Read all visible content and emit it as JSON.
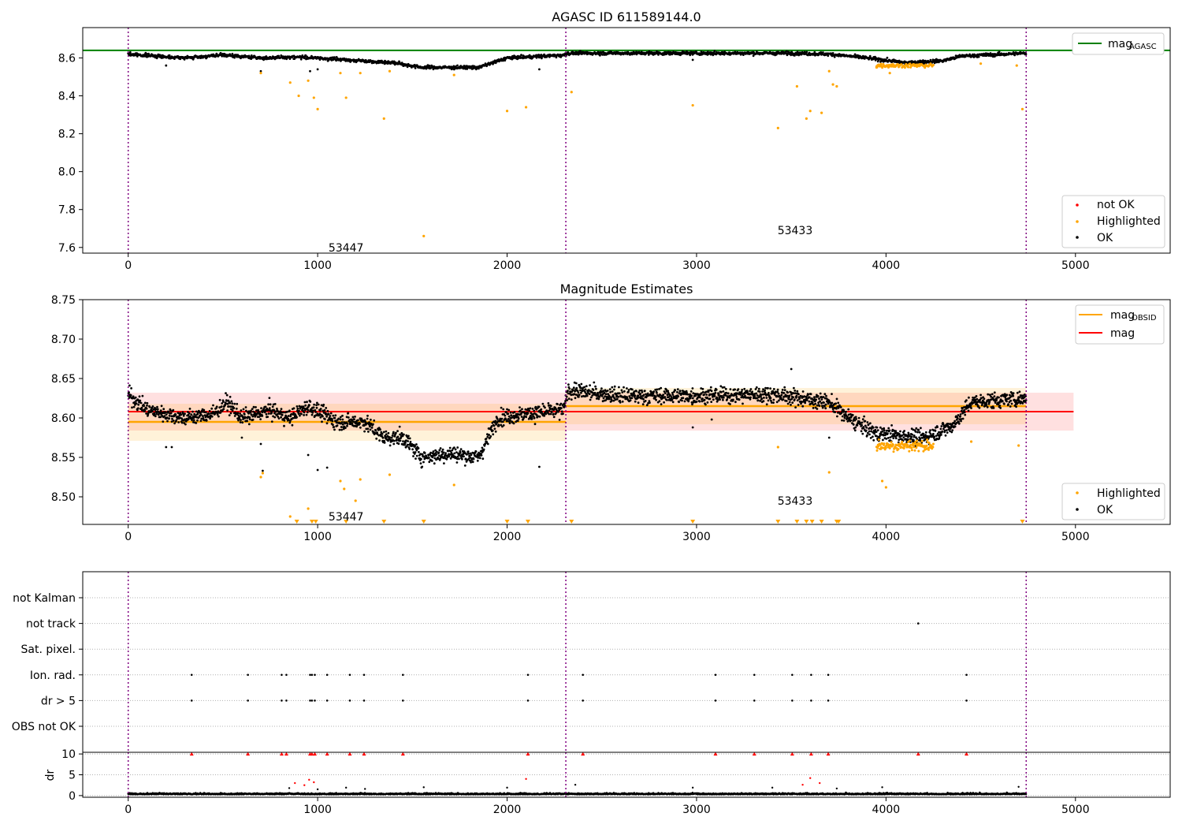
{
  "chart_data": [
    {
      "panel": "top",
      "type": "scatter",
      "title": "AGASC ID 611589144.0",
      "xlim": [
        -240,
        5500
      ],
      "ylim": [
        7.57,
        8.76
      ],
      "xticks": [
        0,
        1000,
        2000,
        3000,
        4000,
        5000
      ],
      "xtick_labels": [
        "0",
        "1000",
        "2000",
        "3000",
        "4000",
        "5000"
      ],
      "yticks": [
        7.6,
        7.8,
        8.0,
        8.2,
        8.4,
        8.6
      ],
      "ytick_labels": [
        "7.6",
        "7.8",
        "8.0",
        "8.2",
        "8.4",
        "8.6"
      ],
      "obsid_boundaries": [
        0,
        2310,
        4740
      ],
      "obsid_labels": [
        {
          "text": "53447",
          "x": 1150,
          "y": 7.6
        },
        {
          "text": "53433",
          "x": 3520,
          "y": 7.69
        }
      ],
      "hlines": [
        {
          "name": "mag",
          "subscript": "AGASC",
          "y": 8.64,
          "xmin": -240,
          "xmax": 5500,
          "color": "#008000"
        }
      ],
      "line_legend": {
        "label": "mag",
        "subscript": "AGASC",
        "placement": "top-right"
      },
      "scatter_legend": {
        "entries": [
          "not OK",
          "Highlighted",
          "OK"
        ],
        "placement": "bottom-right"
      },
      "ok_trend": [
        [
          0,
          8.62
        ],
        [
          300,
          8.6
        ],
        [
          500,
          8.615
        ],
        [
          700,
          8.6
        ],
        [
          900,
          8.605
        ],
        [
          1150,
          8.59
        ],
        [
          1400,
          8.575
        ],
        [
          1550,
          8.55
        ],
        [
          1850,
          8.55
        ],
        [
          2000,
          8.6
        ],
        [
          2300,
          8.615
        ],
        [
          2320,
          8.625
        ],
        [
          3000,
          8.625
        ],
        [
          3500,
          8.625
        ],
        [
          3700,
          8.62
        ],
        [
          3900,
          8.6
        ],
        [
          4100,
          8.575
        ],
        [
          4300,
          8.585
        ],
        [
          4400,
          8.61
        ],
        [
          4740,
          8.625
        ]
      ],
      "ok_spread": 0.008,
      "highlighted_points": [
        [
          700,
          8.52
        ],
        [
          855,
          8.47
        ],
        [
          900,
          8.4
        ],
        [
          950,
          8.48
        ],
        [
          980,
          8.39
        ],
        [
          1000,
          8.33
        ],
        [
          1120,
          8.52
        ],
        [
          1150,
          8.39
        ],
        [
          1225,
          8.52
        ],
        [
          1350,
          8.28
        ],
        [
          1380,
          8.53
        ],
        [
          1560,
          7.66
        ],
        [
          1720,
          8.51
        ],
        [
          2000,
          8.32
        ],
        [
          2100,
          8.34
        ],
        [
          2340,
          8.42
        ],
        [
          2980,
          8.35
        ],
        [
          3430,
          8.23
        ],
        [
          3530,
          8.45
        ],
        [
          3580,
          8.28
        ],
        [
          3600,
          8.32
        ],
        [
          3660,
          8.31
        ],
        [
          3700,
          8.53
        ],
        [
          3720,
          8.46
        ],
        [
          3740,
          8.45
        ],
        [
          3950,
          8.55
        ],
        [
          4020,
          8.52
        ],
        [
          4500,
          8.57
        ],
        [
          4690,
          8.56
        ],
        [
          4720,
          8.33
        ]
      ],
      "orange_cluster": {
        "xrange": [
          3950,
          4250
        ],
        "y": 8.56,
        "spread": 0.01
      }
    },
    {
      "panel": "middle",
      "type": "scatter",
      "title": "Magnitude Estimates",
      "xlim": [
        -240,
        5500
      ],
      "ylim": [
        8.465,
        8.75
      ],
      "xticks": [
        0,
        1000,
        2000,
        3000,
        4000,
        5000
      ],
      "xtick_labels": [
        "0",
        "1000",
        "2000",
        "3000",
        "4000",
        "5000"
      ],
      "yticks": [
        8.5,
        8.55,
        8.6,
        8.65,
        8.7,
        8.75
      ],
      "ytick_labels": [
        "8.50",
        "8.55",
        "8.60",
        "8.65",
        "8.70",
        "8.75"
      ],
      "obsid_boundaries": [
        0,
        2310,
        4740
      ],
      "obsid_labels": [
        {
          "text": "53447",
          "x": 1150,
          "y": 8.475
        },
        {
          "text": "53433",
          "x": 3520,
          "y": 8.495
        }
      ],
      "mag": {
        "value": 8.608,
        "band": [
          8.584,
          8.632
        ],
        "xrange": [
          0,
          4990
        ],
        "color": "#ff0000"
      },
      "mag_obsid": [
        {
          "xrange": [
            0,
            2310
          ],
          "value": 8.595,
          "band": [
            8.571,
            8.618
          ],
          "color": "#ffa500"
        },
        {
          "xrange": [
            2310,
            4740
          ],
          "value": 8.615,
          "band": [
            8.592,
            8.638
          ],
          "color": "#ffa500"
        }
      ],
      "line_legend": [
        {
          "label": "mag",
          "subscript": "OBSID",
          "color": "#ffa500"
        },
        {
          "label": "mag",
          "subscript": "",
          "color": "#ff0000"
        }
      ],
      "scatter_legend": {
        "entries": [
          "Highlighted",
          "OK"
        ],
        "placement": "bottom-right"
      },
      "ok_trend": [
        [
          0,
          8.63
        ],
        [
          100,
          8.61
        ],
        [
          200,
          8.605
        ],
        [
          300,
          8.6
        ],
        [
          450,
          8.605
        ],
        [
          520,
          8.62
        ],
        [
          600,
          8.6
        ],
        [
          750,
          8.61
        ],
        [
          850,
          8.6
        ],
        [
          950,
          8.615
        ],
        [
          1100,
          8.595
        ],
        [
          1250,
          8.595
        ],
        [
          1350,
          8.575
        ],
        [
          1450,
          8.575
        ],
        [
          1550,
          8.55
        ],
        [
          1700,
          8.555
        ],
        [
          1850,
          8.55
        ],
        [
          1950,
          8.6
        ],
        [
          2100,
          8.605
        ],
        [
          2300,
          8.61
        ],
        [
          2320,
          8.635
        ],
        [
          2600,
          8.628
        ],
        [
          3000,
          8.628
        ],
        [
          3400,
          8.63
        ],
        [
          3700,
          8.62
        ],
        [
          3800,
          8.6
        ],
        [
          3950,
          8.58
        ],
        [
          4200,
          8.575
        ],
        [
          4350,
          8.59
        ],
        [
          4450,
          8.62
        ],
        [
          4740,
          8.625
        ]
      ],
      "ok_spread": 0.009,
      "highlighted_points": [
        [
          700,
          8.525
        ],
        [
          710,
          8.53
        ],
        [
          855,
          8.475
        ],
        [
          950,
          8.485
        ],
        [
          1120,
          8.52
        ],
        [
          1140,
          8.51
        ],
        [
          1200,
          8.495
        ],
        [
          1225,
          8.522
        ],
        [
          1380,
          8.528
        ],
        [
          1720,
          8.515
        ],
        [
          3430,
          8.563
        ],
        [
          3700,
          8.531
        ],
        [
          3980,
          8.52
        ],
        [
          4000,
          8.512
        ],
        [
          4450,
          8.57
        ],
        [
          4700,
          8.565
        ]
      ],
      "orange_cluster": {
        "xrange": [
          3950,
          4250
        ],
        "y": 8.565,
        "spread": 0.007
      },
      "offscale_markers_x": [
        890,
        970,
        990,
        1150,
        1350,
        1560,
        2000,
        2110,
        2340,
        2980,
        3430,
        3530,
        3580,
        3610,
        3660,
        3740,
        3750,
        4720
      ]
    },
    {
      "panel": "flags",
      "type": "scatter",
      "xlim": [
        -240,
        5500
      ],
      "categories": [
        "not Kalman",
        "not track",
        "Sat. pixel.",
        "Ion. rad.",
        "dr > 5",
        "OBS not OK"
      ],
      "obsid_boundaries": [
        0,
        2310,
        4740
      ],
      "flags": [
        {
          "category": "not track",
          "x": [
            4170
          ]
        },
        {
          "category": "Ion. rad.",
          "x": [
            335,
            632,
            810,
            835,
            960,
            970,
            985,
            1050,
            1170,
            1245,
            1450,
            2110,
            2400,
            3100,
            3305,
            3505,
            3605,
            3695,
            4425
          ]
        },
        {
          "category": "dr > 5",
          "x": [
            335,
            632,
            810,
            835,
            960,
            970,
            985,
            1050,
            1170,
            1245,
            1450,
            2110,
            2400,
            3100,
            3305,
            3505,
            3605,
            3695,
            4425
          ]
        }
      ]
    },
    {
      "panel": "dr",
      "type": "scatter",
      "xlim": [
        -240,
        5500
      ],
      "ylim": [
        -0.4,
        10.4
      ],
      "ylabel": "dr",
      "yticks": [
        0,
        5,
        10
      ],
      "ytick_labels": [
        "0",
        "5",
        "10"
      ],
      "xticks": [
        0,
        1000,
        2000,
        3000,
        4000,
        5000
      ],
      "xtick_labels": [
        "0",
        "1000",
        "2000",
        "3000",
        "4000",
        "5000"
      ],
      "obsid_boundaries": [
        0,
        2310,
        4740
      ],
      "ok_baseline": {
        "y": 0.3,
        "spread": 0.25
      },
      "red_points": [
        [
          880,
          3.0
        ],
        [
          930,
          2.5
        ],
        [
          955,
          3.8
        ],
        [
          980,
          3.2
        ],
        [
          2100,
          4.0
        ],
        [
          3560,
          2.6
        ],
        [
          3600,
          4.2
        ],
        [
          3650,
          3.0
        ]
      ],
      "black_points": [
        [
          850,
          1.8
        ],
        [
          1000,
          1.5
        ],
        [
          1150,
          1.9
        ],
        [
          1250,
          1.6
        ],
        [
          1560,
          2.0
        ],
        [
          2000,
          1.9
        ],
        [
          2360,
          2.6
        ],
        [
          2980,
          1.9
        ],
        [
          3400,
          1.9
        ],
        [
          3740,
          1.7
        ],
        [
          3980,
          2.0
        ],
        [
          4700,
          2.1
        ]
      ],
      "clipped_markers_x": [
        335,
        632,
        810,
        835,
        960,
        970,
        985,
        1050,
        1170,
        1245,
        1450,
        2110,
        2400,
        3100,
        3305,
        3505,
        3605,
        3695,
        4170,
        4425
      ]
    }
  ]
}
